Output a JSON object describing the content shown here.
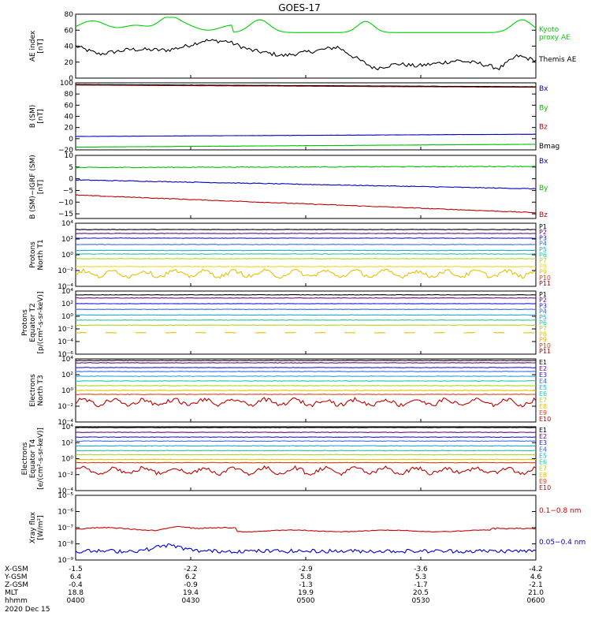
{
  "chart_data": {
    "type": "line",
    "title": "GOES-17",
    "panels": [
      {
        "id": "ae",
        "ylabel": [
          "AE index",
          "[nT]"
        ],
        "ylim": [
          0,
          80
        ],
        "log": false,
        "ticks": [
          0,
          20,
          40,
          60,
          80
        ],
        "tick_labels": [
          "0",
          "20",
          "40",
          "60",
          "80"
        ],
        "series": [
          {
            "name": "Kyoto proxy AE",
            "label": "Kyoto\nproxy AE",
            "color": "#00d000",
            "kind": "ae_kyoto"
          },
          {
            "name": "Themis AE",
            "label": "Themis AE",
            "color": "#000000",
            "kind": "ae_themis"
          }
        ]
      },
      {
        "id": "bsm",
        "ylabel": [
          "B (SM)",
          "[nT]"
        ],
        "ylim": [
          -20,
          100
        ],
        "log": false,
        "ticks": [
          -20,
          0,
          20,
          40,
          60,
          80,
          100
        ],
        "tick_labels": [
          "−20",
          "0",
          "20",
          "40",
          "60",
          "80",
          "100"
        ],
        "series": [
          {
            "name": "Bx",
            "label": "Bx",
            "color": "#0000c0",
            "start": 4,
            "end": 8
          },
          {
            "name": "By",
            "label": "By",
            "color": "#00c000",
            "start": -15,
            "end": -10
          },
          {
            "name": "Bz",
            "label": "Bz",
            "color": "#c00000",
            "start": 96,
            "end": 92
          },
          {
            "name": "Bmag",
            "label": "Bmag",
            "color": "#000000",
            "start": 97,
            "end": 93
          }
        ]
      },
      {
        "id": "bsmigrf",
        "ylabel": [
          "B (SM)−IGRF (SM)",
          "[nT]"
        ],
        "ylim": [
          -17,
          10
        ],
        "log": false,
        "ticks": [
          -15,
          -10,
          -5,
          0,
          5,
          10
        ],
        "tick_labels": [
          "−15",
          "−10",
          "−5",
          "0",
          "5",
          "10"
        ],
        "series": [
          {
            "name": "Bx",
            "label": "Bx",
            "color": "#0000c0",
            "start": -0.5,
            "end": -4.3
          },
          {
            "name": "By",
            "label": "By",
            "color": "#00c000",
            "start": 4.8,
            "end": 5.3
          },
          {
            "name": "Bz",
            "label": "Bz",
            "color": "#c00000",
            "start": -7,
            "end": -14.5
          }
        ]
      },
      {
        "id": "protons_t1",
        "ylabel": [
          "Protons",
          "North T1"
        ],
        "ylim": [
          -4,
          4
        ],
        "log": true,
        "ticks": [
          -4,
          -2,
          0,
          2,
          4
        ],
        "tick_labels": [
          "10⁻⁴",
          "10⁻²",
          "10⁰",
          "10²",
          "10⁴"
        ],
        "series": [
          {
            "name": "P1",
            "label": "P1",
            "color": "#000000",
            "level": 3.2
          },
          {
            "name": "P2",
            "label": "P2",
            "color": "#6a0a8a",
            "level": 2.7
          },
          {
            "name": "P3",
            "label": "P3",
            "color": "#1a1ae0",
            "level": 2.1
          },
          {
            "name": "P4",
            "label": "P4",
            "color": "#3a6ae8",
            "level": 1.3
          },
          {
            "name": "P5",
            "label": "P5",
            "color": "#20a8d8",
            "level": 0.55
          },
          {
            "name": "P6",
            "label": "P6",
            "color": "#20c8a0",
            "level": 0.1
          },
          {
            "name": "P7",
            "label": "P7",
            "color": "#a8d820",
            "level": -0.5
          },
          {
            "name": "P8",
            "label": "P8",
            "color": "#e8d820",
            "level": -1.5
          },
          {
            "name": "P9",
            "label": "P9",
            "color": "#e8c000",
            "level": -2.4,
            "noisy": true
          },
          {
            "name": "P10",
            "label": "P10",
            "color": "#e04010",
            "level": null
          },
          {
            "name": "P11",
            "label": "P11",
            "color": "#c00000",
            "level": null
          }
        ]
      },
      {
        "id": "protons_t2",
        "ylabel": [
          "Protons",
          "Equator T2",
          "[p/(cm²-s-sr-keV)]"
        ],
        "ylim": [
          -6,
          4
        ],
        "log": true,
        "ticks": [
          -6,
          -4,
          -2,
          0,
          2,
          4
        ],
        "tick_labels": [
          "10⁻⁶",
          "10⁻⁴",
          "10⁻²",
          "10⁰",
          "10²",
          "10⁴"
        ],
        "series": [
          {
            "name": "P1",
            "label": "P1",
            "color": "#000000",
            "level": 3.4
          },
          {
            "name": "P2",
            "label": "P2",
            "color": "#6a0a8a",
            "level": 2.9
          },
          {
            "name": "P3",
            "label": "P3",
            "color": "#1a1ae0",
            "level": 2.0
          },
          {
            "name": "P4",
            "label": "P4",
            "color": "#3a6ae8",
            "level": 1.1
          },
          {
            "name": "P5",
            "label": "P5",
            "color": "#20a8d8",
            "level": 0.2
          },
          {
            "name": "P6",
            "label": "P6",
            "color": "#20c8a0",
            "level": -0.6
          },
          {
            "name": "P7",
            "label": "P7",
            "color": "#a8d820",
            "level": -1.4
          },
          {
            "name": "P8",
            "label": "P8",
            "color": "#e8c000",
            "level": -2.6,
            "dashed": true
          },
          {
            "name": "P9",
            "label": "P9",
            "color": "#e8a000",
            "level": null
          },
          {
            "name": "P10",
            "label": "P10",
            "color": "#e04010",
            "level": null
          },
          {
            "name": "P11",
            "label": "P11",
            "color": "#c00000",
            "level": null
          }
        ]
      },
      {
        "id": "electrons_t3",
        "ylabel": [
          "Electrons",
          "North T3"
        ],
        "ylim": [
          -4,
          4
        ],
        "log": true,
        "ticks": [
          -4,
          -2,
          0,
          2,
          4
        ],
        "tick_labels": [
          "10⁻⁴",
          "10⁻²",
          "10⁰",
          "10²",
          "10⁴"
        ],
        "series": [
          {
            "name": "E1",
            "label": "E1",
            "color": "#000000",
            "level": 3.8
          },
          {
            "name": "E2",
            "label": "E2",
            "color": "#6a0a8a",
            "level": 3.5
          },
          {
            "name": "E3",
            "label": "E3",
            "color": "#1a1ae0",
            "level": 2.9
          },
          {
            "name": "E4",
            "label": "E4",
            "color": "#3a6ae8",
            "level": 2.4
          },
          {
            "name": "E5",
            "label": "E5",
            "color": "#20a8d8",
            "level": 1.8
          },
          {
            "name": "E6",
            "label": "E6",
            "color": "#20c8a0",
            "level": 1.2
          },
          {
            "name": "E7",
            "label": "E7",
            "color": "#a8d820",
            "level": 0.6
          },
          {
            "name": "E8",
            "label": "E8",
            "color": "#e8c000",
            "level": 0.0
          },
          {
            "name": "E9",
            "label": "E9",
            "color": "#e04010",
            "level": -0.5
          },
          {
            "name": "E10",
            "label": "E10",
            "color": "#c00000",
            "level": -1.5,
            "noisy": true
          }
        ]
      },
      {
        "id": "electrons_t4",
        "ylabel": [
          "Electrons",
          "Equator T4",
          "[e/(cm²-s-sr-keV)]"
        ],
        "ylim": [
          -4,
          4
        ],
        "log": true,
        "ticks": [
          -4,
          -2,
          0,
          2,
          4
        ],
        "tick_labels": [
          "10⁻⁴",
          "10⁻²",
          "10⁰",
          "10²",
          "10⁴"
        ],
        "series": [
          {
            "name": "E1",
            "label": "E1",
            "color": "#000000",
            "level": 3.9
          },
          {
            "name": "E2",
            "label": "E2",
            "color": "#6a0a8a",
            "level": 3.3
          },
          {
            "name": "E3",
            "label": "E3",
            "color": "#1a1ae0",
            "level": 2.7
          },
          {
            "name": "E4",
            "label": "E4",
            "color": "#3a6ae8",
            "level": 2.2
          },
          {
            "name": "E5",
            "label": "E5",
            "color": "#20a8d8",
            "level": 1.6
          },
          {
            "name": "E6",
            "label": "E6",
            "color": "#20c8a0",
            "level": 1.0
          },
          {
            "name": "E7",
            "label": "E7",
            "color": "#a8d820",
            "level": 0.5
          },
          {
            "name": "E8",
            "label": "E8",
            "color": "#e8c000",
            "level": -0.1
          },
          {
            "name": "E9",
            "label": "E9",
            "color": "#e04010",
            "level": -0.5
          },
          {
            "name": "E10",
            "label": "E10",
            "color": "#c00000",
            "level": -1.5,
            "noisy": true
          }
        ]
      },
      {
        "id": "xray",
        "ylabel": [
          "Xray flux",
          "[W/m²]"
        ],
        "ylim": [
          -9,
          -5
        ],
        "log": true,
        "ticks": [
          -9,
          -8,
          -7,
          -6,
          -5
        ],
        "tick_labels": [
          "10⁻⁹",
          "10⁻⁸",
          "10⁻⁷",
          "10⁻⁶",
          "10⁻⁵"
        ],
        "series": [
          {
            "name": "0.1-0.8 nm",
            "label": "0.1−0.8 nm",
            "color": "#d00000",
            "kind": "xray_long"
          },
          {
            "name": "0.05-0.4 nm",
            "label": "0.05−0.4 nm",
            "color": "#0000d0",
            "kind": "xray_short"
          }
        ]
      }
    ],
    "x_axis": {
      "range_minutes": [
        0,
        120
      ],
      "tick_minutes": [
        0,
        30,
        60,
        90,
        120
      ],
      "rows": [
        {
          "label": "X-GSM",
          "values": [
            "-1.5",
            "-2.2",
            "-2.9",
            "-3.6",
            "-4.2"
          ]
        },
        {
          "label": "Y-GSM",
          "values": [
            "6.4",
            "6.2",
            "5.8",
            "5.3",
            "4.6"
          ]
        },
        {
          "label": "Z-GSM",
          "values": [
            "-0.4",
            "-0.9",
            "-1.3",
            "-1.7",
            "-2.1"
          ]
        },
        {
          "label": "MLT",
          "values": [
            "18.8",
            "19.4",
            "19.9",
            "20.5",
            "21.0"
          ]
        },
        {
          "label": "hhmm",
          "values": [
            "0400",
            "0430",
            "0500",
            "0530",
            "0600"
          ]
        }
      ],
      "date": "2020 Dec 15"
    }
  }
}
